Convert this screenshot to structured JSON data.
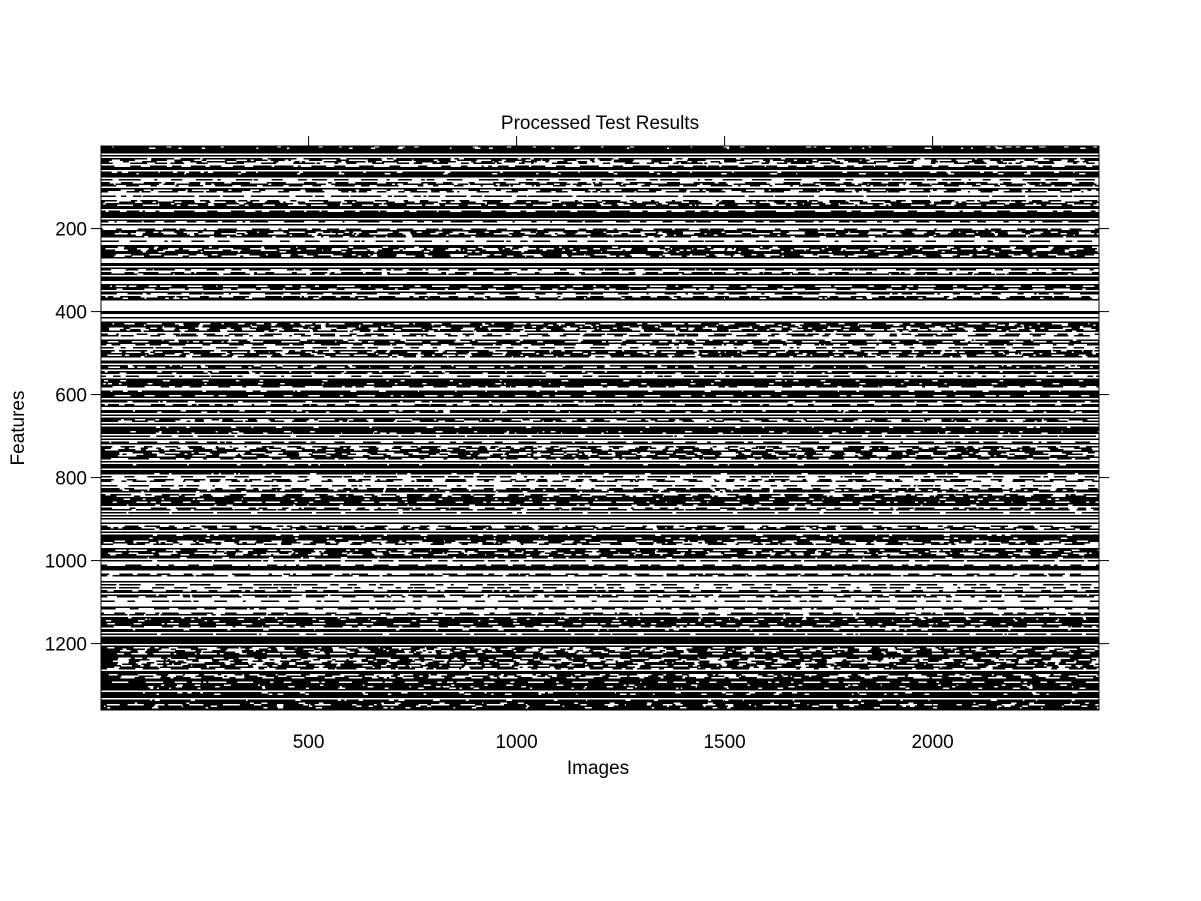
{
  "chart_data": {
    "type": "heatmap",
    "title": "Processed Test Results",
    "xlabel": "Images",
    "ylabel": "Features",
    "x_range": [
      1,
      2400
    ],
    "y_range": [
      1,
      1360
    ],
    "y_reversed": true,
    "x_ticks": [
      500,
      1000,
      1500,
      2000
    ],
    "y_ticks": [
      200,
      400,
      600,
      800,
      1000,
      1200
    ],
    "x_tick_labels": [
      "500",
      "1000",
      "1500",
      "2000"
    ],
    "y_tick_labels": [
      "200",
      "400",
      "600",
      "800",
      "1000",
      "1200"
    ],
    "colormap": [
      "#ffffff",
      "#000000"
    ],
    "values_description": "binary matrix (features x images); rows show predominantly horizontal black/white banding",
    "grid": false,
    "legend": "none"
  }
}
